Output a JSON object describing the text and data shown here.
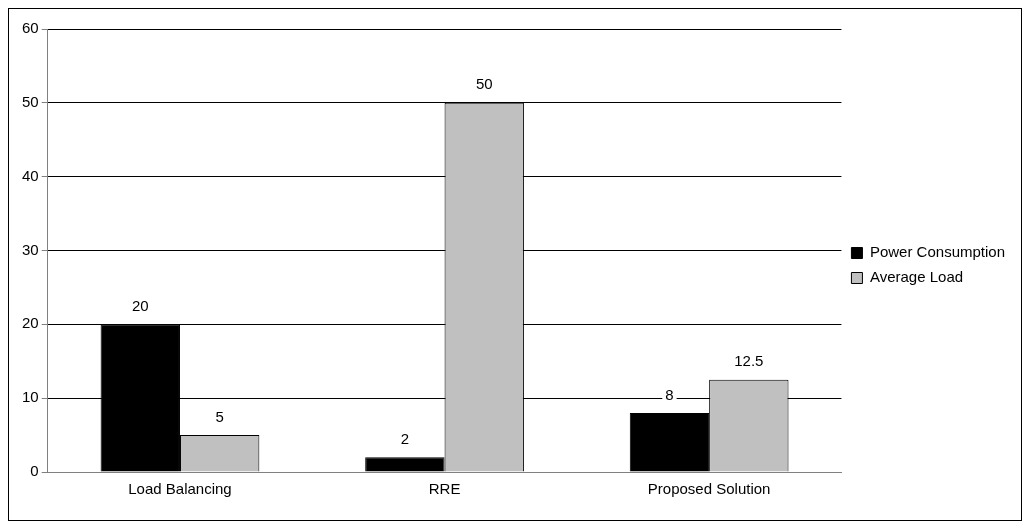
{
  "chart_data": {
    "type": "bar",
    "categories": [
      "Load Balancing",
      "RRE",
      "Proposed Solution"
    ],
    "series": [
      {
        "name": "Power Consumption",
        "color": "#000000",
        "values": [
          20,
          2,
          8
        ]
      },
      {
        "name": "Average Load",
        "color": "#c0c0c0",
        "values": [
          5,
          50,
          12.5
        ]
      }
    ],
    "ylim": [
      0,
      60
    ],
    "yticks": [
      0,
      10,
      20,
      30,
      40,
      50,
      60
    ],
    "grid": "y",
    "legend": "right",
    "data_labels": true
  }
}
